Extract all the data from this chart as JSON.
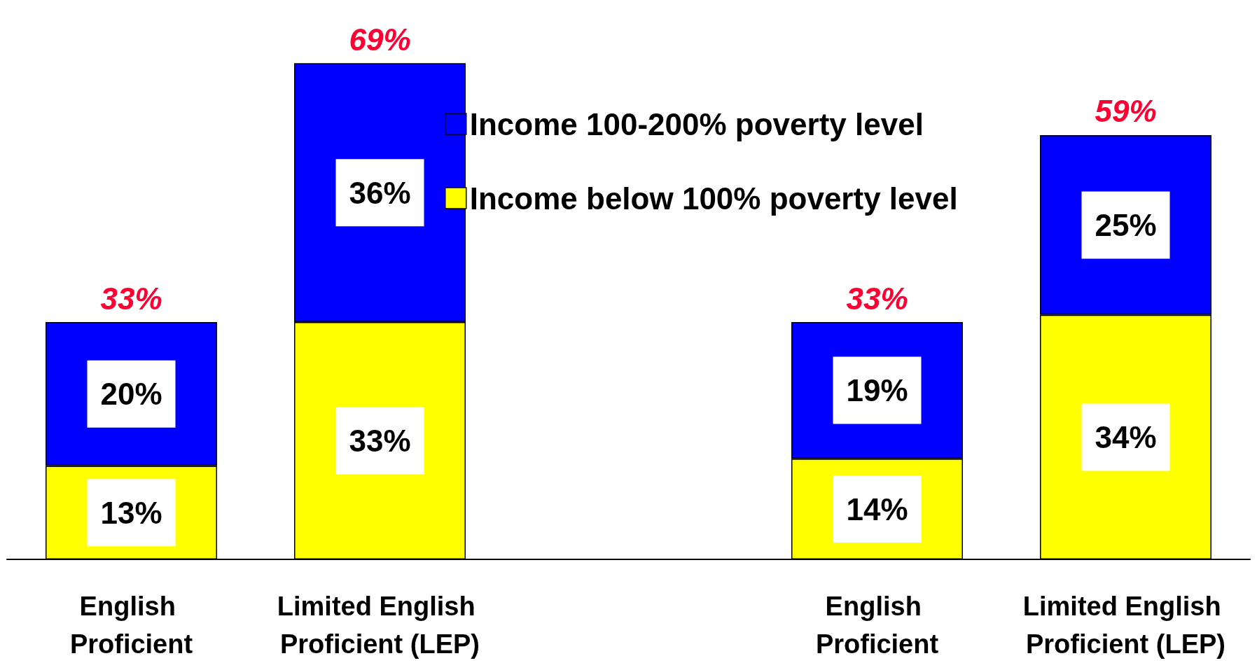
{
  "chart_data": {
    "type": "bar",
    "stacked": true,
    "categories": [
      "English Proficient",
      "Limited English Proficient (LEP)",
      null,
      "English Proficient",
      "Limited English Proficient (LEP)"
    ],
    "series": [
      {
        "name": "Income below 100% poverty level",
        "color": "#ffff00",
        "values": [
          13,
          33,
          null,
          14,
          34
        ],
        "value_labels": [
          "13%",
          "33%",
          null,
          "14%",
          "34%"
        ]
      },
      {
        "name": "Income 100-200% poverty level",
        "color": "#0000ff",
        "values": [
          20,
          36,
          null,
          19,
          25
        ],
        "value_labels": [
          "20%",
          "36%",
          null,
          "19%",
          "25%"
        ]
      }
    ],
    "totals": [
      "33%",
      "69%",
      null,
      "33%",
      "59%"
    ],
    "legend": "top"
  }
}
